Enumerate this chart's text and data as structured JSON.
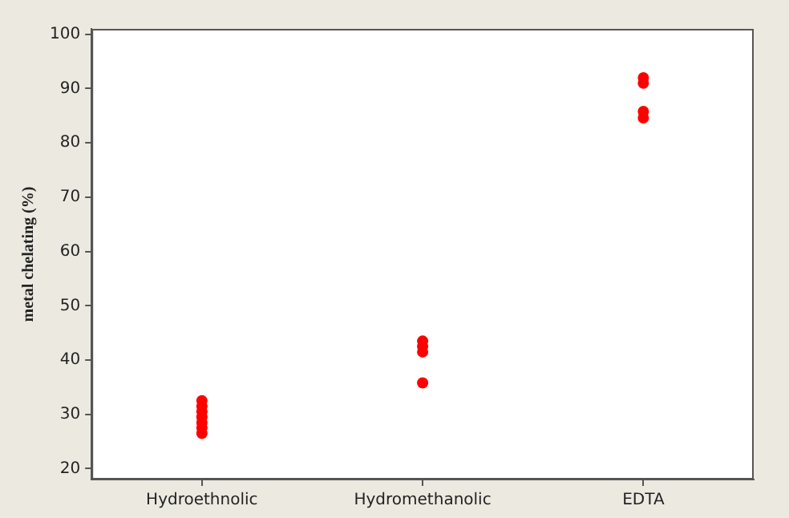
{
  "chart_data": {
    "type": "scatter",
    "ylabel": "metal chelating (%)",
    "categories": [
      "Hydroethnolic",
      "Hydromethanolic",
      "EDTA"
    ],
    "series": [
      {
        "color": "#ff0000",
        "x": [
          "Hydroethnolic",
          "Hydroethnolic",
          "Hydroethnolic",
          "Hydroethnolic",
          "Hydroethnolic",
          "Hydroethnolic",
          "Hydroethnolic",
          "Hydromethanolic",
          "Hydromethanolic",
          "Hydromethanolic",
          "Hydromethanolic",
          "EDTA",
          "EDTA",
          "EDTA",
          "EDTA"
        ],
        "values": [
          32.5,
          31.5,
          30.5,
          29.5,
          28.5,
          27.5,
          26.5,
          43.5,
          42.5,
          41.5,
          35.8,
          92,
          91,
          85.8,
          84.6
        ]
      }
    ],
    "ylim": [
      18,
      101
    ],
    "yticks": [
      20,
      30,
      40,
      50,
      60,
      70,
      80,
      90,
      100
    ],
    "grid": false,
    "legend": false,
    "marker": "circle"
  }
}
